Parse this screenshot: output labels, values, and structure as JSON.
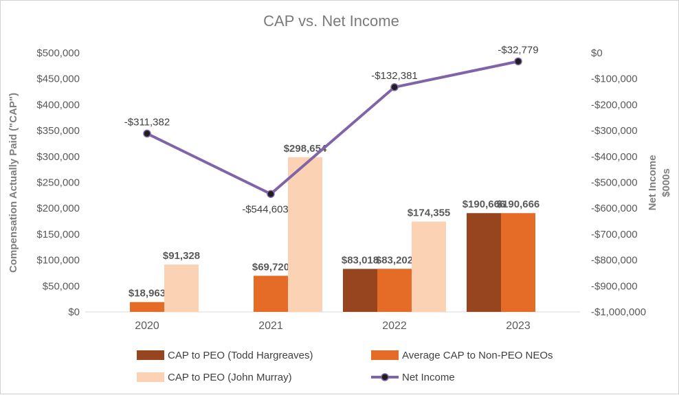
{
  "chart_data": {
    "type": "bar",
    "title": "CAP vs. Net Income",
    "categories": [
      "2020",
      "2021",
      "2022",
      "2023"
    ],
    "ylabel": "Compensation Actually Paid (\"CAP\")",
    "y2label_line1": "Net Income",
    "y2label_line2": "$000s",
    "ylim": [
      0,
      500000
    ],
    "y2lim": [
      -1000000,
      0
    ],
    "y_ticks": [
      "$0",
      "$50,000",
      "$100,000",
      "$150,000",
      "$200,000",
      "$250,000",
      "$300,000",
      "$350,000",
      "$400,000",
      "$450,000",
      "$500,000"
    ],
    "y2_ticks": [
      "-$1,000,000",
      "-$900,000",
      "-$800,000",
      "-$700,000",
      "-$600,000",
      "-$500,000",
      "-$400,000",
      "-$300,000",
      "-$200,000",
      "-$100,000",
      "$0"
    ],
    "series": [
      {
        "name": "CAP to PEO (Todd Hargreaves)",
        "kind": "bar",
        "color": "#96451E",
        "values": [
          null,
          null,
          83018,
          190666
        ],
        "labels": [
          "",
          "",
          "$83,018",
          "$190,666"
        ]
      },
      {
        "name": "Average CAP to Non-PEO NEOs",
        "kind": "bar",
        "color": "#E46C27",
        "values": [
          18963,
          69720,
          83202,
          190666
        ],
        "labels": [
          "$18,963",
          "$69,720",
          "$83,202",
          "$190,666"
        ]
      },
      {
        "name": "CAP to PEO (John Murray)",
        "kind": "bar",
        "color": "#FCD2B4",
        "values": [
          91328,
          298654,
          174355,
          null
        ],
        "labels": [
          "$91,328",
          "$298,654",
          "$174,355",
          ""
        ]
      },
      {
        "name": "Net Income",
        "kind": "line",
        "axis": "right",
        "color": "#8064A8",
        "values": [
          -311382,
          -544603,
          -132381,
          -32779
        ],
        "labels": [
          "-$311,382",
          "-$544,603",
          "-$132,381",
          "-$32,779"
        ]
      }
    ],
    "grid": false,
    "legend": "bottom"
  }
}
